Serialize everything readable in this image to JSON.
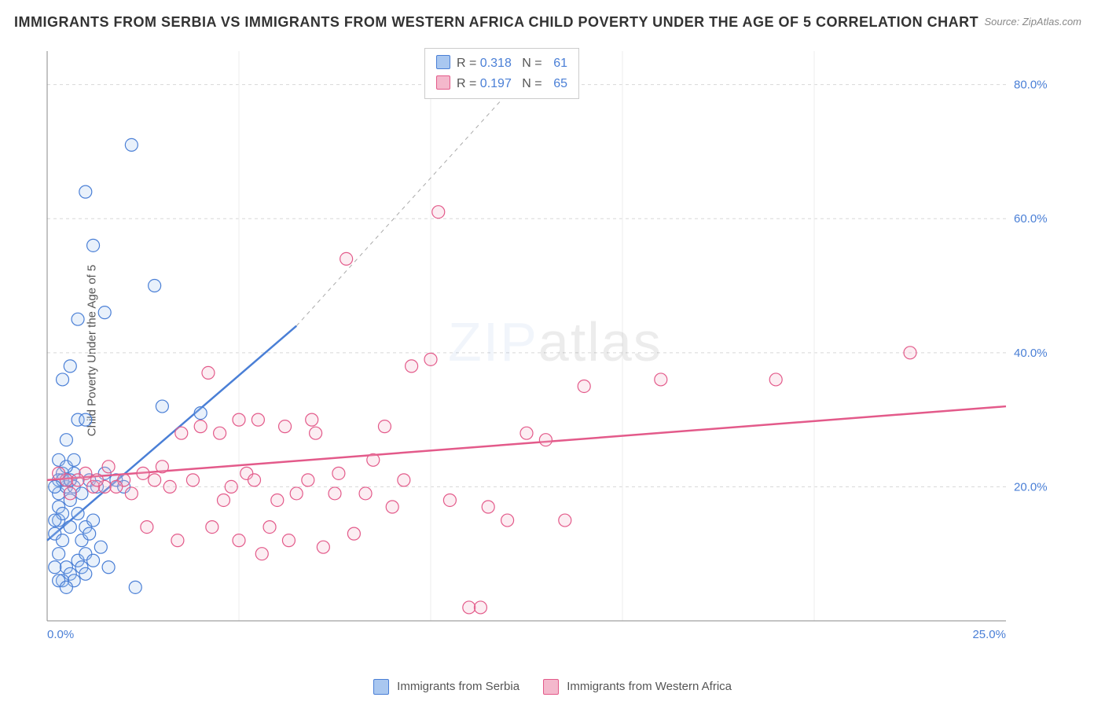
{
  "title": "IMMIGRANTS FROM SERBIA VS IMMIGRANTS FROM WESTERN AFRICA CHILD POVERTY UNDER THE AGE OF 5 CORRELATION CHART",
  "source": "Source: ZipAtlas.com",
  "ylabel": "Child Poverty Under the Age of 5",
  "watermark_a": "ZIP",
  "watermark_b": "atlas",
  "chart": {
    "type": "scatter",
    "xlim": [
      0,
      25
    ],
    "ylim": [
      0,
      85
    ],
    "x_ticks": [
      0,
      25
    ],
    "x_tick_labels": [
      "0.0%",
      "25.0%"
    ],
    "y_ticks": [
      20,
      40,
      60,
      80
    ],
    "y_tick_labels": [
      "20.0%",
      "40.0%",
      "60.0%",
      "80.0%"
    ],
    "grid_color": "#d8d8d8",
    "axis_color": "#888888",
    "background_color": "#ffffff",
    "marker_radius": 8,
    "marker_stroke_width": 1.2,
    "marker_fill_opacity": 0.25,
    "series": [
      {
        "name": "Immigrants from Serbia",
        "label": "Immigrants from Serbia",
        "stroke": "#4a7fd6",
        "fill": "#a9c7f0",
        "r_value": "0.318",
        "n_value": "61",
        "trend": {
          "x1": 0,
          "y1": 12,
          "x2": 6.5,
          "y2": 44,
          "dash_extend_x2": 13.0,
          "dash_extend_y2": 85
        },
        "points": [
          [
            0.2,
            13
          ],
          [
            0.3,
            15
          ],
          [
            0.4,
            12
          ],
          [
            0.3,
            19
          ],
          [
            0.5,
            20
          ],
          [
            0.6,
            18
          ],
          [
            0.4,
            22
          ],
          [
            0.7,
            20
          ],
          [
            0.3,
            10
          ],
          [
            0.5,
            8
          ],
          [
            0.6,
            7
          ],
          [
            0.8,
            9
          ],
          [
            0.7,
            6
          ],
          [
            0.9,
            8
          ],
          [
            1.0,
            7
          ],
          [
            0.4,
            6
          ],
          [
            0.6,
            14
          ],
          [
            0.8,
            16
          ],
          [
            1.0,
            14
          ],
          [
            1.2,
            15
          ],
          [
            0.9,
            19
          ],
          [
            1.1,
            21
          ],
          [
            1.3,
            20
          ],
          [
            0.7,
            22
          ],
          [
            0.5,
            27
          ],
          [
            0.8,
            30
          ],
          [
            1.5,
            22
          ],
          [
            1.8,
            21
          ],
          [
            2.0,
            20
          ],
          [
            0.4,
            36
          ],
          [
            0.6,
            38
          ],
          [
            1.0,
            30
          ],
          [
            1.5,
            46
          ],
          [
            2.8,
            50
          ],
          [
            3.0,
            32
          ],
          [
            4.0,
            31
          ],
          [
            1.2,
            56
          ],
          [
            1.0,
            64
          ],
          [
            2.2,
            71
          ],
          [
            0.8,
            45
          ],
          [
            0.3,
            21
          ],
          [
            0.4,
            21
          ],
          [
            0.5,
            21
          ],
          [
            0.6,
            21
          ],
          [
            0.2,
            20
          ],
          [
            0.3,
            17
          ],
          [
            0.4,
            16
          ],
          [
            0.2,
            15
          ],
          [
            1.0,
            10
          ],
          [
            1.2,
            9
          ],
          [
            1.4,
            11
          ],
          [
            1.6,
            8
          ],
          [
            0.3,
            24
          ],
          [
            0.5,
            23
          ],
          [
            0.7,
            24
          ],
          [
            2.3,
            5
          ],
          [
            0.9,
            12
          ],
          [
            1.1,
            13
          ],
          [
            0.2,
            8
          ],
          [
            0.3,
            6
          ],
          [
            0.5,
            5
          ]
        ]
      },
      {
        "name": "Immigrants from Western Africa",
        "label": "Immigrants from Western Africa",
        "stroke": "#e35a8a",
        "fill": "#f4b8cc",
        "r_value": "0.197",
        "n_value": "65",
        "trend": {
          "x1": 0,
          "y1": 21,
          "x2": 25,
          "y2": 32
        },
        "points": [
          [
            0.5,
            21
          ],
          [
            1.0,
            22
          ],
          [
            1.5,
            20
          ],
          [
            2.0,
            21
          ],
          [
            2.5,
            22
          ],
          [
            3.0,
            23
          ],
          [
            1.2,
            20
          ],
          [
            1.8,
            20
          ],
          [
            3.5,
            28
          ],
          [
            4.0,
            29
          ],
          [
            4.5,
            28
          ],
          [
            5.0,
            30
          ],
          [
            5.5,
            30
          ],
          [
            4.2,
            37
          ],
          [
            5.2,
            22
          ],
          [
            6.0,
            18
          ],
          [
            6.5,
            19
          ],
          [
            7.0,
            28
          ],
          [
            7.5,
            19
          ],
          [
            5.8,
            14
          ],
          [
            6.3,
            12
          ],
          [
            7.2,
            11
          ],
          [
            8.0,
            13
          ],
          [
            8.5,
            24
          ],
          [
            9.0,
            17
          ],
          [
            9.5,
            38
          ],
          [
            10.0,
            39
          ],
          [
            10.5,
            18
          ],
          [
            11.0,
            2
          ],
          [
            11.3,
            2
          ],
          [
            11.5,
            17
          ],
          [
            12.0,
            15
          ],
          [
            12.5,
            28
          ],
          [
            13.0,
            27
          ],
          [
            13.5,
            15
          ],
          [
            7.8,
            54
          ],
          [
            10.2,
            61
          ],
          [
            14.0,
            35
          ],
          [
            16.0,
            36
          ],
          [
            19.0,
            36
          ],
          [
            22.5,
            40
          ],
          [
            3.2,
            20
          ],
          [
            3.8,
            21
          ],
          [
            4.6,
            18
          ],
          [
            5.4,
            21
          ],
          [
            6.8,
            21
          ],
          [
            7.6,
            22
          ],
          [
            8.3,
            19
          ],
          [
            2.2,
            19
          ],
          [
            2.8,
            21
          ],
          [
            1.6,
            23
          ],
          [
            0.8,
            21
          ],
          [
            0.3,
            22
          ],
          [
            0.6,
            19
          ],
          [
            4.3,
            14
          ],
          [
            5.0,
            12
          ],
          [
            5.6,
            10
          ],
          [
            6.2,
            29
          ],
          [
            6.9,
            30
          ],
          [
            8.8,
            29
          ],
          [
            9.3,
            21
          ],
          [
            1.3,
            21
          ],
          [
            2.6,
            14
          ],
          [
            3.4,
            12
          ],
          [
            4.8,
            20
          ]
        ]
      }
    ]
  },
  "stats_box": {
    "r_label": "R =",
    "n_label": "N ="
  },
  "legend": {
    "serbia": "Immigrants from Serbia",
    "wafrica": "Immigrants from Western Africa"
  }
}
